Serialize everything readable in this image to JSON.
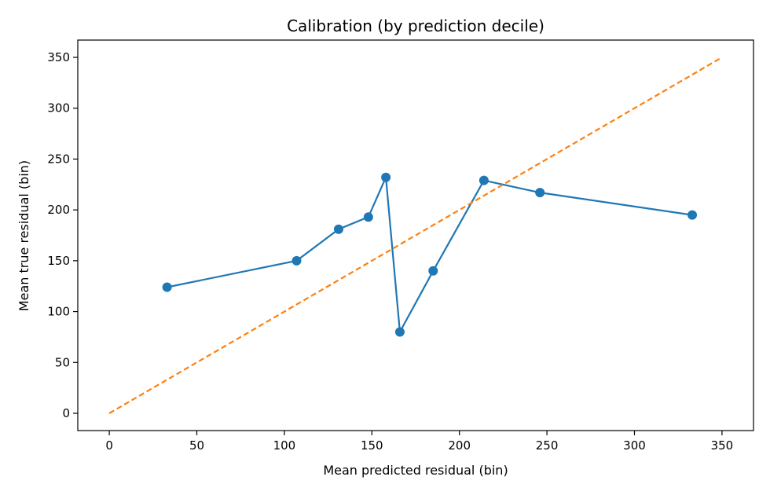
{
  "chart_data": {
    "type": "line",
    "title": "Calibration (by prediction decile)",
    "xlabel": "Mean predicted residual (bin)",
    "ylabel": "Mean true residual (bin)",
    "xlim": [
      -18,
      368
    ],
    "ylim": [
      -17,
      367
    ],
    "xticks": [
      0,
      50,
      100,
      150,
      200,
      250,
      300,
      350
    ],
    "yticks": [
      0,
      50,
      100,
      150,
      200,
      250,
      300,
      350
    ],
    "grid": false,
    "series": [
      {
        "color": "#1f77b4",
        "marker": "circle",
        "line_style": "solid",
        "x": [
          33,
          107,
          131,
          148,
          158,
          166,
          185,
          214,
          246,
          333
        ],
        "y": [
          124,
          150,
          181,
          193,
          232,
          80,
          140,
          229,
          217,
          195
        ]
      },
      {
        "color": "#ff7f0e",
        "marker": "none",
        "line_style": "dashed",
        "x": [
          0,
          350
        ],
        "y": [
          0,
          350
        ]
      }
    ]
  }
}
